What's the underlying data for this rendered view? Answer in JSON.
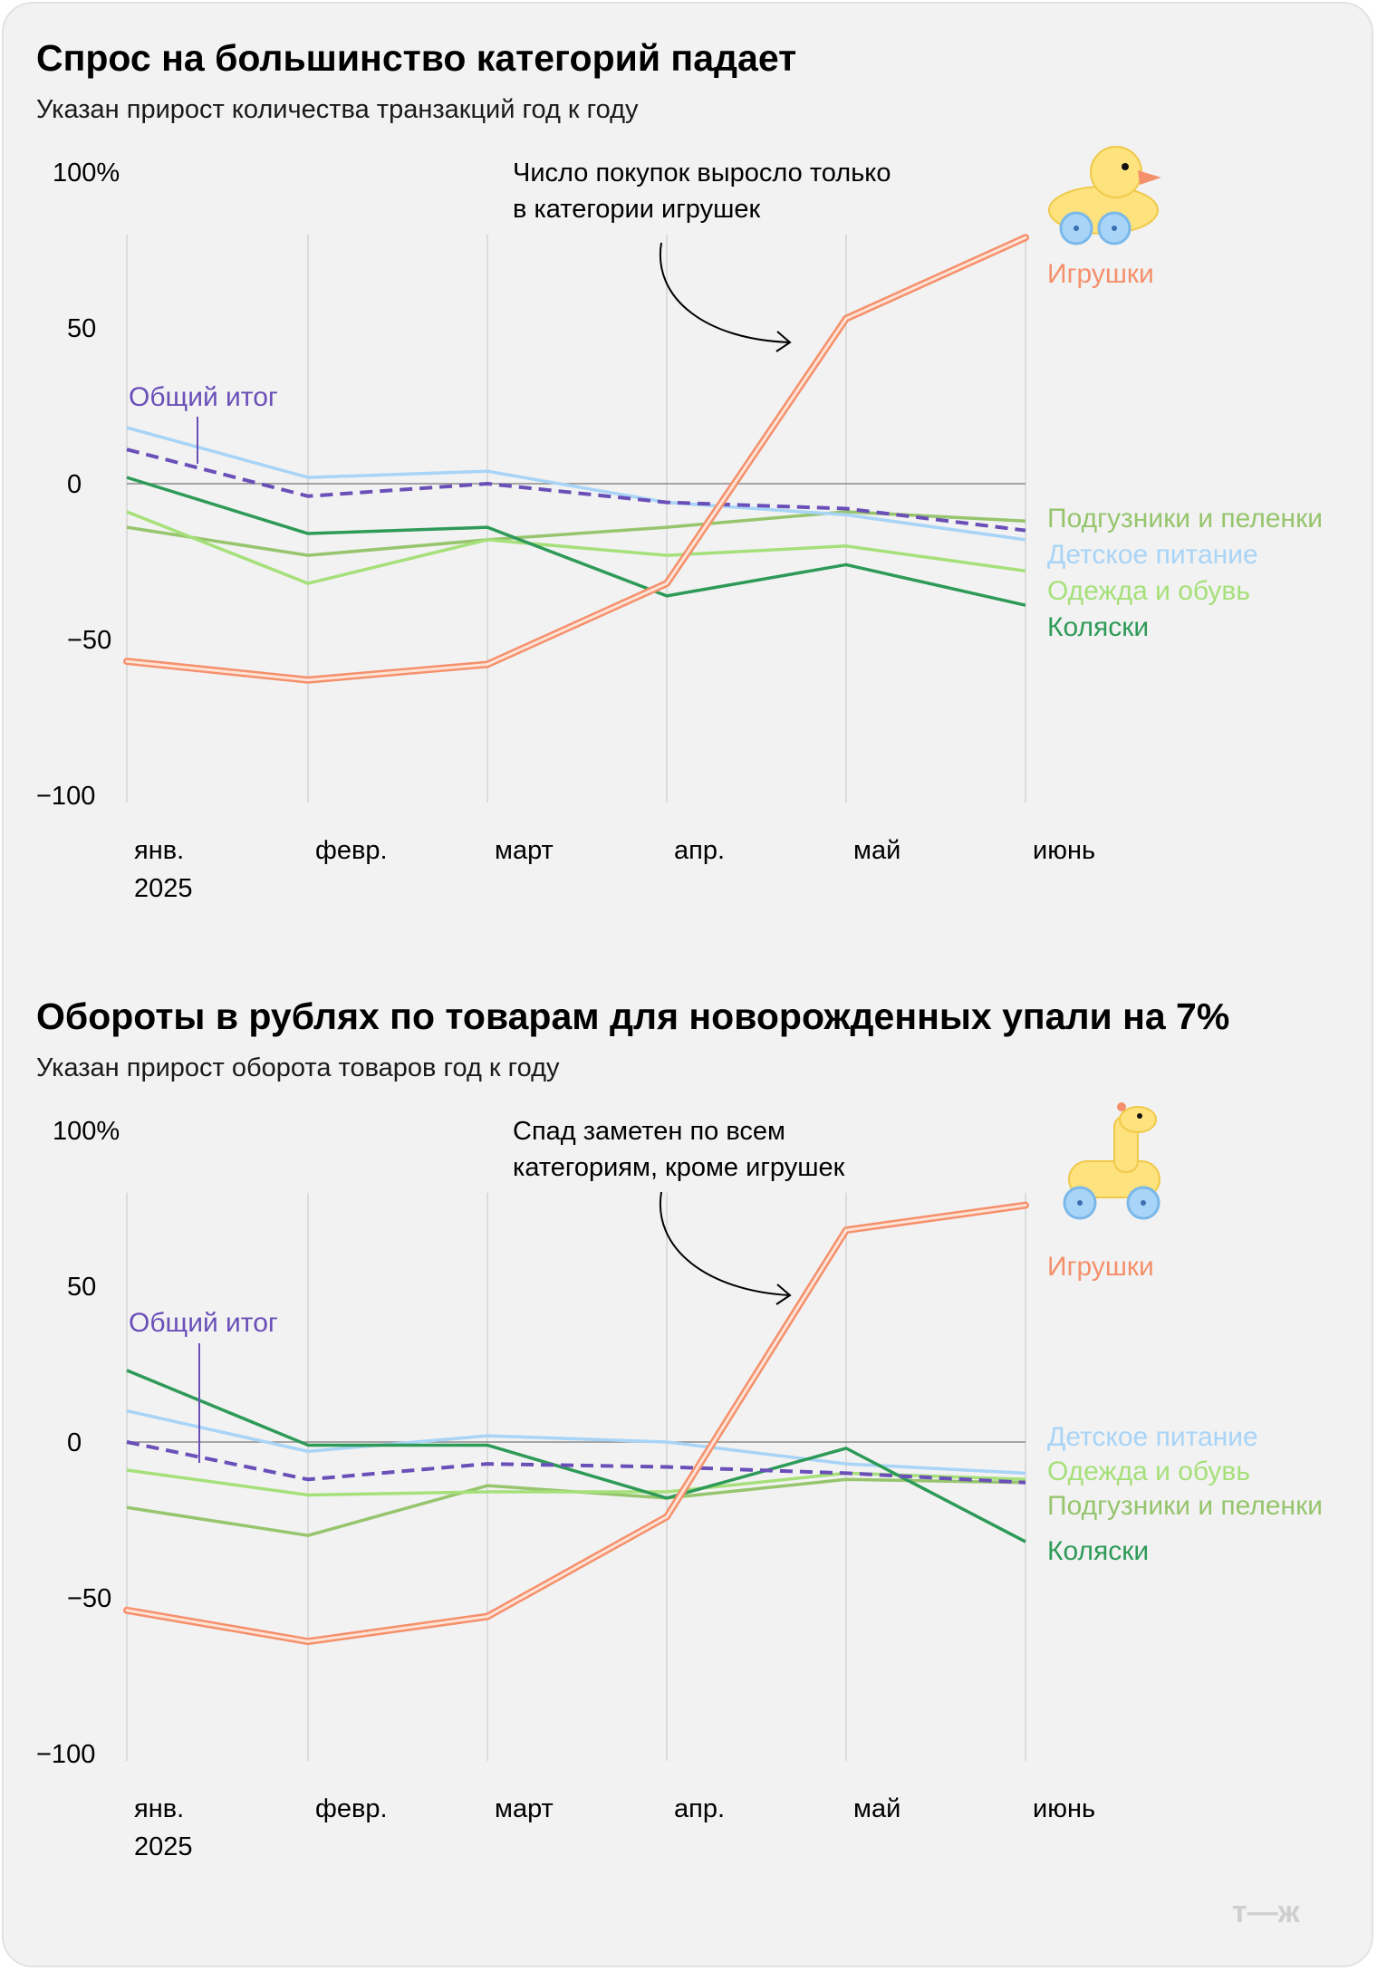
{
  "logo": "т—ж",
  "colors": {
    "toys": "#f5906c",
    "total": "#6a4fb8",
    "baby_food": "#a8d4f7",
    "diapers": "#96c56d",
    "clothes": "#a6e07a",
    "strollers": "#2e9a58",
    "grid": "#dcdcdc",
    "zero": "#8a8a8a"
  },
  "chart_data": [
    {
      "type": "line",
      "title": "Спрос на большинство категорий падает",
      "subtitle": "Указан прирост количества транзакций год к году",
      "x": [
        "янв.",
        "февр.",
        "март",
        "апр.",
        "май",
        "июнь"
      ],
      "x_sublabel": "2025",
      "ylim": [
        -100,
        100
      ],
      "yticks": [
        "100%",
        "50",
        "0",
        "−50",
        "−100"
      ],
      "annotation": [
        "Число покупок выросло только",
        "в категории игрушек"
      ],
      "icon": "toy-duck-icon",
      "series": [
        {
          "key": "diapers",
          "name": "Подгузники и пеленки",
          "values": [
            -14,
            -23,
            -18,
            -14,
            -9,
            -12
          ]
        },
        {
          "key": "baby_food",
          "name": "Детское питание",
          "values": [
            18,
            2,
            4,
            -6,
            -10,
            -18
          ]
        },
        {
          "key": "clothes",
          "name": "Одежда и обувь",
          "values": [
            -9,
            -32,
            -18,
            -23,
            -20,
            -28
          ]
        },
        {
          "key": "strollers",
          "name": "Коляски",
          "values": [
            2,
            -16,
            -14,
            -36,
            -26,
            -39
          ]
        },
        {
          "key": "total",
          "name": "Общий итог",
          "values": [
            11,
            -4,
            0,
            -6,
            -8,
            -15
          ]
        },
        {
          "key": "toys",
          "name": "Игрушки",
          "values": [
            -57,
            -63,
            -58,
            -32,
            53,
            79
          ]
        }
      ]
    },
    {
      "type": "line",
      "title": "Обороты в рублях по товарам для новорожденных упали на 7%",
      "subtitle": "Указан прирост оборота товаров год к году",
      "x": [
        "янв.",
        "февр.",
        "март",
        "апр.",
        "май",
        "июнь"
      ],
      "x_sublabel": "2025",
      "ylim": [
        -100,
        100
      ],
      "yticks": [
        "100%",
        "50",
        "0",
        "−50",
        "−100"
      ],
      "annotation": [
        "Спад заметен по всем",
        "категориям, кроме игрушек"
      ],
      "icon": "toy-giraffe-icon",
      "series": [
        {
          "key": "baby_food",
          "name": "Детское питание",
          "values": [
            10,
            -3,
            2,
            0,
            -7,
            -10
          ]
        },
        {
          "key": "clothes",
          "name": "Одежда и обувь",
          "values": [
            -9,
            -17,
            -16,
            -16,
            -10,
            -12
          ]
        },
        {
          "key": "diapers",
          "name": "Подгузники и пеленки",
          "values": [
            -21,
            -30,
            -14,
            -18,
            -12,
            -13
          ]
        },
        {
          "key": "strollers",
          "name": "Коляски",
          "values": [
            23,
            -1,
            -1,
            -18,
            -2,
            -32
          ]
        },
        {
          "key": "total",
          "name": "Общий итог",
          "values": [
            0,
            -12,
            -7,
            -8,
            -10,
            -13
          ]
        },
        {
          "key": "toys",
          "name": "Игрушки",
          "values": [
            -54,
            -64,
            -56,
            -24,
            68,
            76
          ]
        }
      ]
    }
  ]
}
